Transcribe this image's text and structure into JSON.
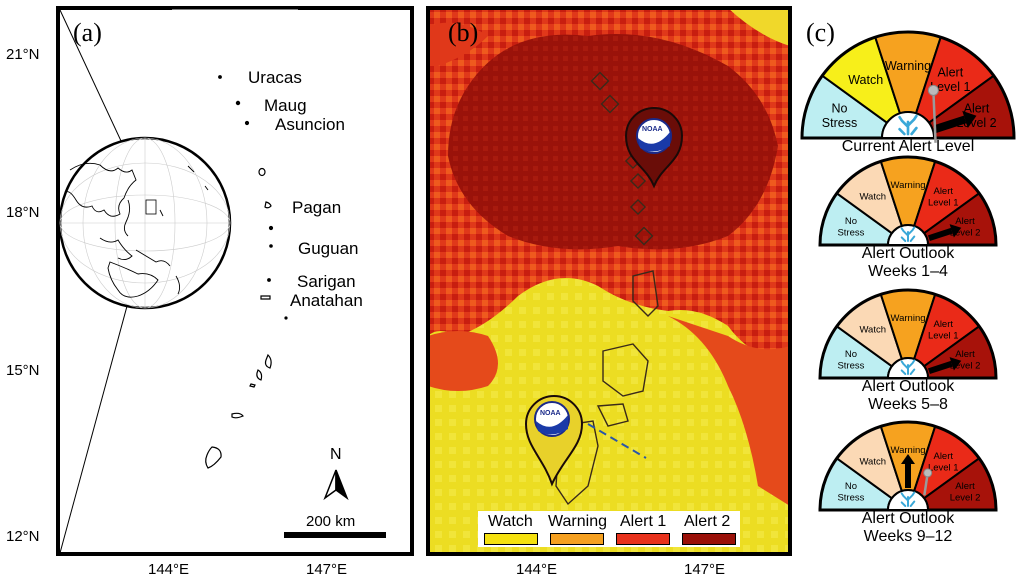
{
  "panel_a": {
    "label": "(a)",
    "lat_ticks": [
      "21°N",
      "18°N",
      "15°N",
      "12°N"
    ],
    "lon_ticks": [
      "144°E",
      "147°E"
    ],
    "islands": [
      "Uracas",
      "Maug",
      "Asuncion",
      "Pagan",
      "Guguan",
      "Sarigan",
      "Anatahan"
    ],
    "north_label": "N",
    "scale_label": "200 km"
  },
  "panel_b": {
    "label": "(b)",
    "lon_ticks": [
      "144°E",
      "147°E"
    ],
    "badge_text": "NOAA",
    "legend": [
      {
        "label": "Watch",
        "color": "#f5e10f"
      },
      {
        "label": "Warning",
        "color": "#f5a020"
      },
      {
        "label": "Alert 1",
        "color": "#e8321c"
      },
      {
        "label": "Alert 2",
        "color": "#9a1008"
      }
    ]
  },
  "panel_c": {
    "label": "(c)",
    "gauges": [
      {
        "caption_lines": [
          "Current Alert Level"
        ],
        "segments": [
          {
            "label": [
              "No",
              "Stress"
            ],
            "color": "#bdeef2"
          },
          {
            "label": [
              "Watch"
            ],
            "color": "#f7ef1a"
          },
          {
            "label": [
              "Warning"
            ],
            "color": "#f6a21f"
          },
          {
            "label": [
              "Alert",
              "Level 1"
            ],
            "color": "#ea2a18"
          },
          {
            "label": [
              "Alert",
              "Level 2"
            ],
            "color": "#a7120a"
          }
        ],
        "pointer_level": 4
      },
      {
        "caption_lines": [
          "Alert Outlook",
          "Weeks 1–4"
        ],
        "segments": [
          {
            "label": [
              "No",
              "Stress"
            ],
            "color": "#bdeef2"
          },
          {
            "label": [
              "Watch"
            ],
            "color": "#fbd9b5"
          },
          {
            "label": [
              "Warning"
            ],
            "color": "#f6a21f"
          },
          {
            "label": [
              "Alert",
              "Level 1"
            ],
            "color": "#ea2a18"
          },
          {
            "label": [
              "Alert",
              "Level 2"
            ],
            "color": "#a7120a"
          }
        ],
        "pointer_level": 4
      },
      {
        "caption_lines": [
          "Alert Outlook",
          "Weeks 5–8"
        ],
        "segments": [
          {
            "label": [
              "No",
              "Stress"
            ],
            "color": "#bdeef2"
          },
          {
            "label": [
              "Watch"
            ],
            "color": "#fbd9b5"
          },
          {
            "label": [
              "Warning"
            ],
            "color": "#f6a21f"
          },
          {
            "label": [
              "Alert",
              "Level 1"
            ],
            "color": "#ea2a18"
          },
          {
            "label": [
              "Alert",
              "Level 2"
            ],
            "color": "#a7120a"
          }
        ],
        "pointer_level": 4
      },
      {
        "caption_lines": [
          "Alert Outlook",
          "Weeks 9–12"
        ],
        "segments": [
          {
            "label": [
              "No",
              "Stress"
            ],
            "color": "#bdeef2"
          },
          {
            "label": [
              "Watch"
            ],
            "color": "#fbd9b5"
          },
          {
            "label": [
              "Warning"
            ],
            "color": "#f6a21f"
          },
          {
            "label": [
              "Alert",
              "Level 1"
            ],
            "color": "#ea2a18"
          },
          {
            "label": [
              "Alert",
              "Level 2"
            ],
            "color": "#a7120a"
          }
        ],
        "pointer_level": 2
      }
    ]
  }
}
